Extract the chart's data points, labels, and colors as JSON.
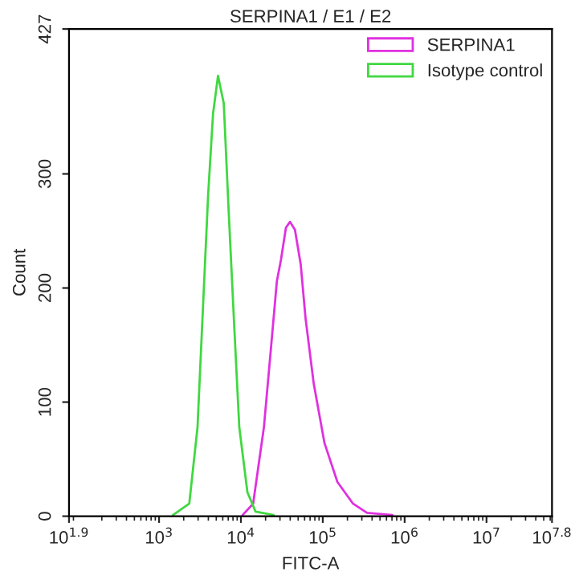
{
  "chart_data": {
    "type": "line",
    "title": "SERPINA1 / E1 / E2",
    "xlabel": "FITC-A",
    "ylabel": "Count",
    "log": "x",
    "grid": false,
    "legend": "top right",
    "marker": "none",
    "line_style": "solid",
    "xlim": [
      79.43,
      63095734
    ],
    "xticks": [
      {
        "value": 79.43,
        "label": "10$^{1.9}$"
      },
      {
        "value": 1000,
        "label": "10$^{3}$"
      },
      {
        "value": 10000,
        "label": "10$^{4}$"
      },
      {
        "value": 100000,
        "label": "10$^{5}$"
      },
      {
        "value": 1000000,
        "label": "10$^{6}$"
      },
      {
        "value": 10000000,
        "label": "10$^{7}$"
      },
      {
        "value": 63095734,
        "label": "10$^{7.8}$"
      }
    ],
    "ylim": [
      0,
      427
    ],
    "yticks": [
      0,
      100,
      200,
      300,
      427
    ],
    "series": [
      {
        "name": "SERPINA1",
        "color": "#e030e0",
        "x": [
          10500,
          14100,
          19100,
          23400,
          27500,
          30900,
          35500,
          39800,
          45700,
          53700,
          61700,
          77600,
          105000,
          151000,
          234000,
          347000,
          708000
        ],
        "values": [
          1,
          11,
          78,
          149,
          206,
          225,
          253,
          258,
          251,
          221,
          173,
          116,
          64,
          30,
          11,
          3,
          1
        ]
      },
      {
        "name": "Isotype control",
        "color": "#40d840",
        "x": [
          1480,
          2340,
          2950,
          3390,
          3980,
          4570,
          5250,
          6170,
          7080,
          8320,
          9550,
          12000,
          15100,
          25100
        ],
        "values": [
          1,
          11,
          78,
          173,
          282,
          353,
          386,
          362,
          268,
          164,
          78,
          21,
          4,
          1
        ]
      }
    ]
  }
}
